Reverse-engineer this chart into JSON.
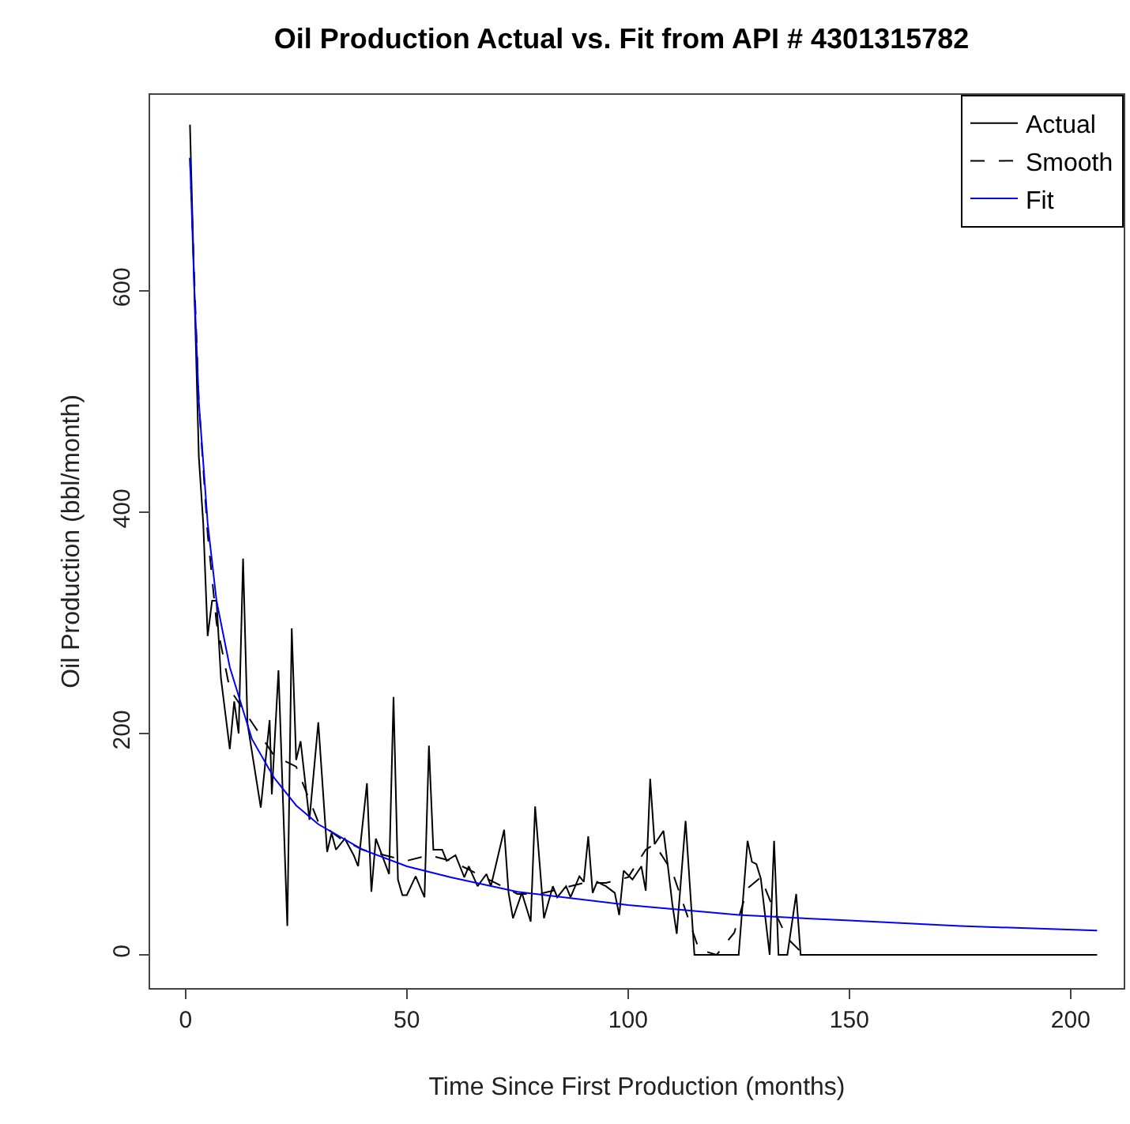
{
  "chart_data": {
    "type": "line",
    "title": "Oil Production Actual vs. Fit from API # 4301315782",
    "xlabel": "Time Since First Production (months)",
    "ylabel": "Oil Production (bbl/month)",
    "xlim": [
      -8,
      212
    ],
    "ylim": [
      -30,
      777
    ],
    "xticks": [
      0,
      50,
      100,
      150,
      200
    ],
    "yticks": [
      0,
      200,
      400,
      600
    ],
    "legend": "top right",
    "marker": "none",
    "series": [
      {
        "name": "Actual",
        "color": "#000000",
        "line_style": "solid",
        "x": [
          1,
          3,
          4,
          5,
          6,
          7,
          8,
          10,
          11,
          12,
          13,
          14,
          17,
          19,
          19.5,
          21,
          23,
          24,
          25,
          26,
          28,
          30,
          32,
          33,
          34,
          36,
          38,
          39,
          41,
          42,
          43,
          46,
          47,
          48,
          49,
          50,
          52,
          54,
          55,
          56,
          58,
          59,
          61,
          63,
          64,
          66,
          68,
          69,
          72,
          73,
          74,
          76,
          78,
          79,
          81,
          83,
          84,
          86,
          87,
          89,
          90,
          91,
          92,
          93,
          95,
          97,
          98,
          99,
          101,
          103,
          104,
          105,
          106,
          108,
          109,
          110,
          111,
          113,
          115,
          125,
          127,
          128,
          129,
          130,
          132,
          133,
          134,
          136,
          138,
          139,
          206
        ],
        "values": [
          750,
          450,
          390,
          288,
          320,
          320,
          250,
          186,
          229,
          200,
          358,
          209,
          133,
          212,
          145,
          257,
          26,
          295,
          176,
          193,
          122,
          210,
          93,
          110,
          95,
          105,
          90,
          80,
          155,
          57,
          105,
          73,
          233,
          68,
          54,
          54,
          71,
          52,
          189,
          95,
          95,
          85,
          90,
          70,
          80,
          62,
          73,
          62,
          113,
          56,
          33,
          56,
          30,
          134,
          33,
          62,
          52,
          62,
          52,
          71,
          66,
          107,
          56,
          66,
          62,
          56,
          36,
          76,
          68,
          80,
          58,
          159,
          100,
          112,
          80,
          46,
          19,
          121,
          0,
          0,
          103,
          84,
          82,
          69,
          0,
          103,
          0,
          0,
          55,
          0,
          0
        ]
      },
      {
        "name": "Smooth",
        "color": "#000000",
        "line_style": "dashed",
        "x": [
          1,
          3,
          5,
          7,
          10,
          15,
          20,
          25,
          30,
          35,
          40,
          45,
          50,
          55,
          60,
          65,
          70,
          75,
          80,
          85,
          90,
          95,
          100,
          104,
          106,
          110,
          113,
          116,
          120,
          124,
          127,
          130,
          133,
          136,
          139,
          142,
          206
        ],
        "values": [
          720,
          500,
          380,
          300,
          240,
          210,
          180,
          170,
          120,
          105,
          95,
          90,
          85,
          90,
          85,
          75,
          65,
          55,
          55,
          60,
          65,
          65,
          70,
          95,
          100,
          75,
          40,
          5,
          0,
          20,
          60,
          70,
          40,
          15,
          3,
          0,
          0
        ]
      },
      {
        "name": "Fit",
        "color": "#0000ff",
        "line_style": "solid",
        "x": [
          1,
          2,
          3,
          5,
          7,
          10,
          15,
          20,
          25,
          30,
          40,
          50,
          60,
          75,
          100,
          125,
          150,
          175,
          206
        ],
        "values": [
          720,
          600,
          500,
          390,
          320,
          260,
          195,
          160,
          135,
          118,
          95,
          80,
          70,
          57,
          45,
          36,
          31,
          26,
          22
        ]
      }
    ]
  }
}
